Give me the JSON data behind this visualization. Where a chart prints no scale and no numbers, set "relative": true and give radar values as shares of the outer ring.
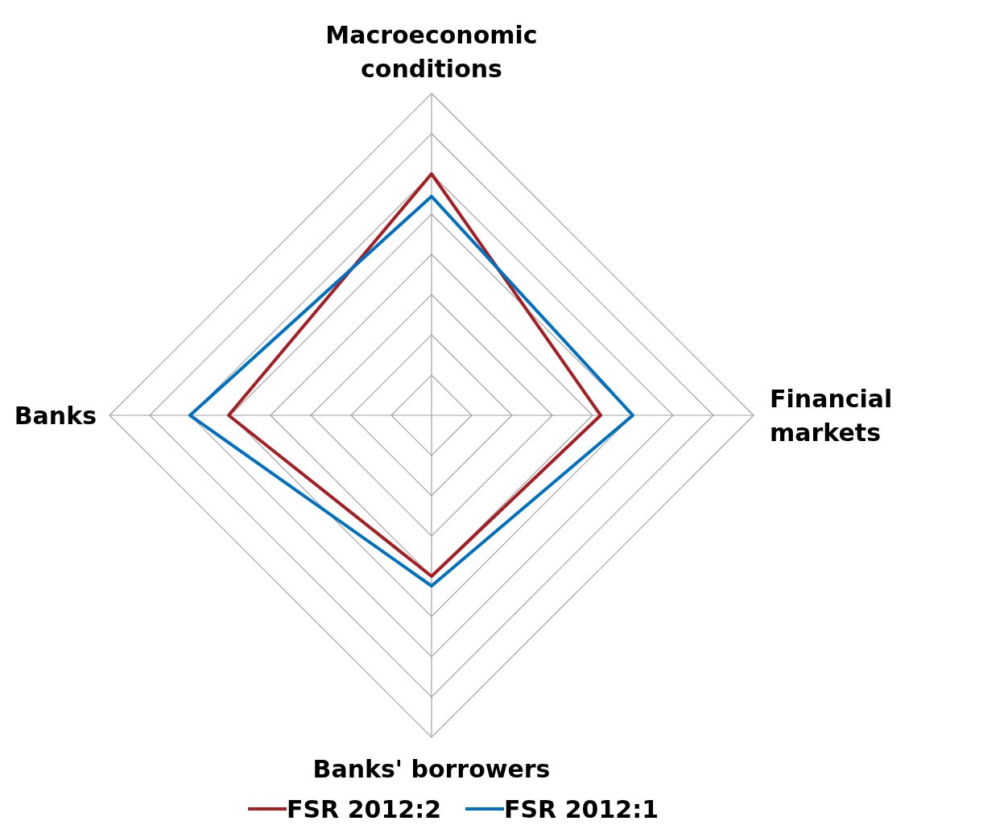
{
  "chart_data": {
    "type": "radar",
    "relative": true,
    "categories": [
      "Macroeconomic conditions",
      "Financial markets",
      "Banks' borrowers",
      "Banks"
    ],
    "series": [
      {
        "name": "FSR 2012:2",
        "color": "#a51e23",
        "values": [
          0.75,
          0.525,
          0.5,
          0.63
        ]
      },
      {
        "name": "FSR 2012:1",
        "color": "#0070c0",
        "values": [
          0.68,
          0.625,
          0.53,
          0.75
        ]
      }
    ],
    "legend": "bottom"
  }
}
